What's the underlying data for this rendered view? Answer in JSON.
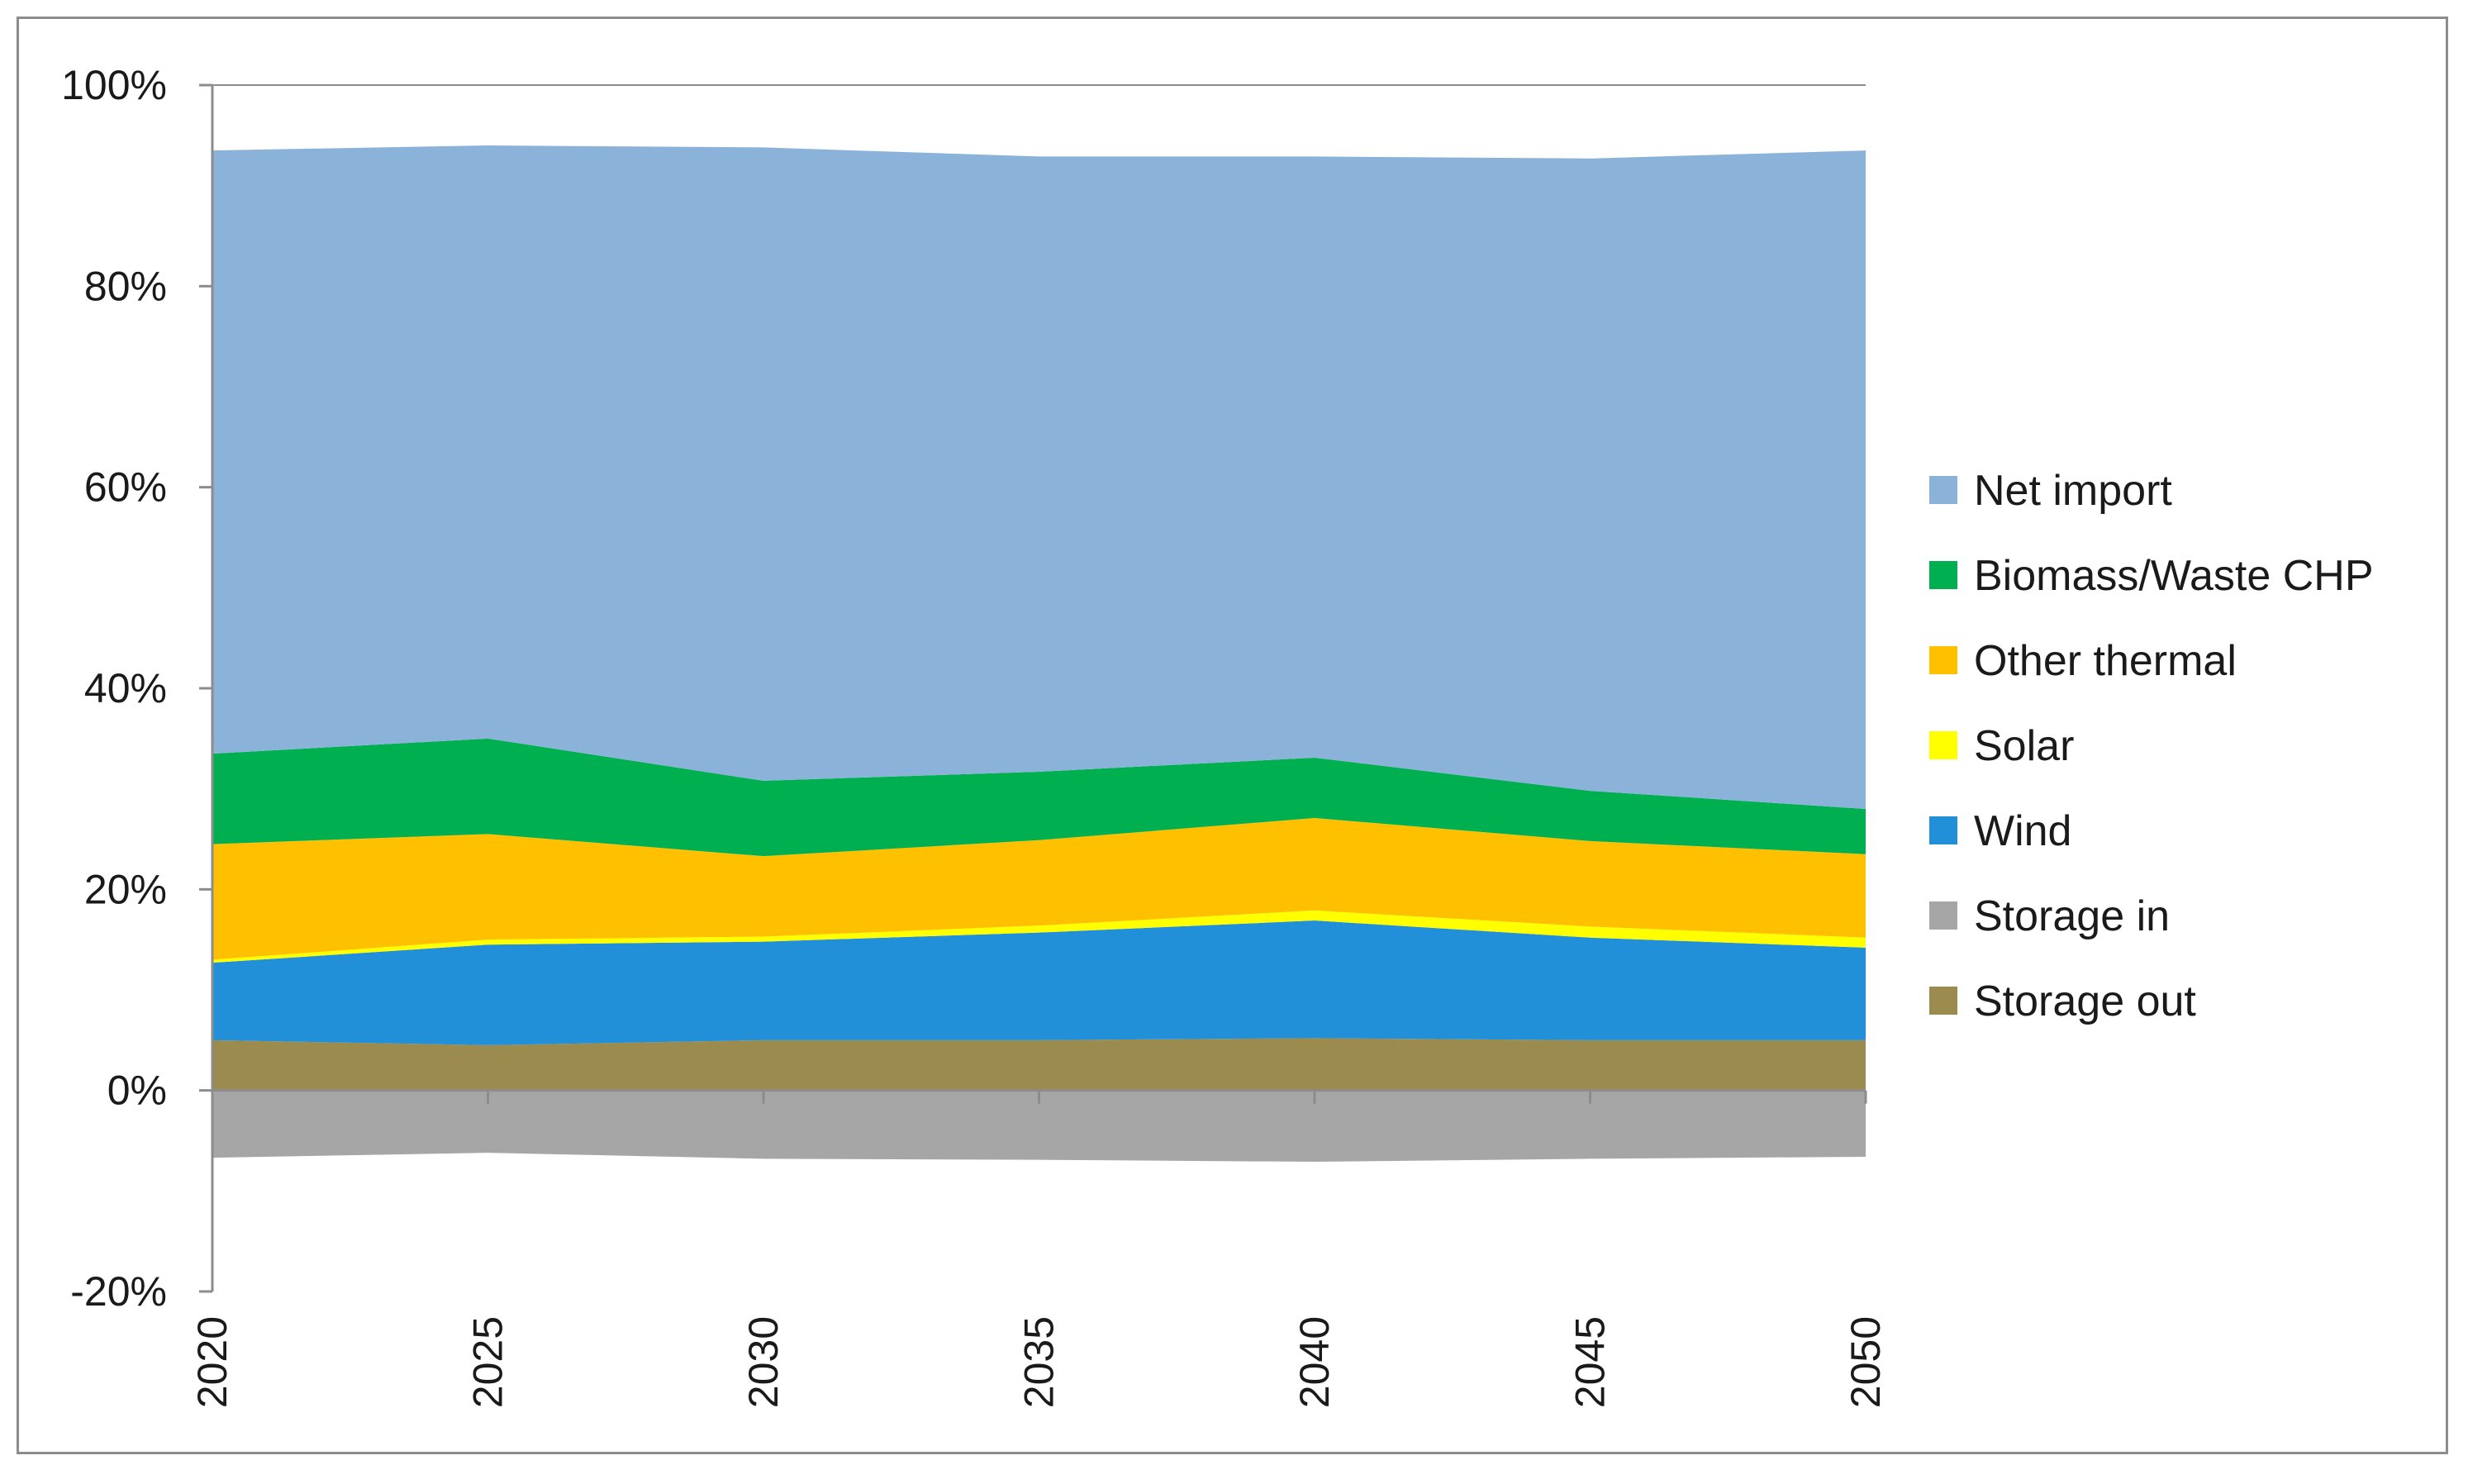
{
  "chart_data": {
    "type": "area",
    "stacked": true,
    "title": "",
    "xlabel": "",
    "ylabel": "",
    "ylim": [
      -0.2,
      1.0
    ],
    "xlim": [
      2020,
      2050
    ],
    "y_ticks": [
      {
        "value": 1.0,
        "label": "100%"
      },
      {
        "value": 0.8,
        "label": "80%"
      },
      {
        "value": 0.6,
        "label": "60%"
      },
      {
        "value": 0.4,
        "label": "40%"
      },
      {
        "value": 0.2,
        "label": "20%"
      },
      {
        "value": 0.0,
        "label": "0%"
      },
      {
        "value": -0.2,
        "label": "-20%"
      }
    ],
    "x_ticks": [
      {
        "value": 2020,
        "label": "2020"
      },
      {
        "value": 2025,
        "label": "2025"
      },
      {
        "value": 2030,
        "label": "2030"
      },
      {
        "value": 2035,
        "label": "2035"
      },
      {
        "value": 2040,
        "label": "2040"
      },
      {
        "value": 2045,
        "label": "2045"
      },
      {
        "value": 2050,
        "label": "2050"
      }
    ],
    "legend_position": "right",
    "x": [
      2020,
      2025,
      2030,
      2035,
      2040,
      2045,
      2050
    ],
    "series": [
      {
        "name": "Net import",
        "color": "#8bb3d9",
        "values": [
          0.6,
          0.59,
          0.63,
          0.612,
          0.598,
          0.629,
          0.655
        ]
      },
      {
        "name": "Biomass/Waste CHP",
        "color": "#00b050",
        "values": [
          0.09,
          0.095,
          0.075,
          0.068,
          0.06,
          0.05,
          0.045
        ]
      },
      {
        "name": "Other thermal",
        "color": "#ffc000",
        "values": [
          0.115,
          0.105,
          0.08,
          0.085,
          0.092,
          0.085,
          0.083
        ]
      },
      {
        "name": "Solar",
        "color": "#ffff00",
        "values": [
          0.003,
          0.005,
          0.005,
          0.007,
          0.01,
          0.011,
          0.01
        ]
      },
      {
        "name": "Wind",
        "color": "#2190d8",
        "values": [
          0.077,
          0.1,
          0.098,
          0.107,
          0.117,
          0.102,
          0.092
        ]
      },
      {
        "name": "Storage in",
        "color": "#a6a6a6",
        "values": [
          -0.067,
          -0.062,
          -0.068,
          -0.069,
          -0.071,
          -0.068,
          -0.066
        ]
      },
      {
        "name": "Storage out",
        "color": "#9b8b4e",
        "values": [
          0.05,
          0.045,
          0.05,
          0.05,
          0.052,
          0.05,
          0.05
        ]
      }
    ]
  }
}
